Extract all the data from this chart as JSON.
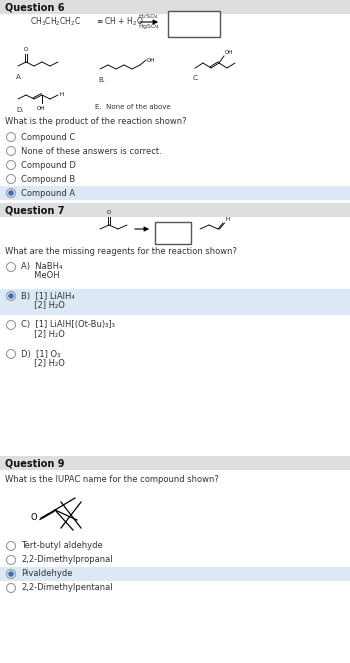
{
  "bg_color": "#ffffff",
  "section_header_color": "#dedede",
  "selected_highlight_color": "#dce8f5",
  "text_color": "#333333",
  "q6_title": "Question 6",
  "q6_question": "What is the product of the reaction shown?",
  "q6_options": [
    {
      "text": "Compound C",
      "selected": false
    },
    {
      "text": "None of these answers is correct.",
      "selected": false
    },
    {
      "text": "Compound D",
      "selected": false
    },
    {
      "text": "Compound B",
      "selected": false
    },
    {
      "text": "Compound A",
      "selected": true
    }
  ],
  "q7_title": "Question 7",
  "q7_question": "What are the missing reagents for the reaction shown?",
  "q7_options": [
    {
      "lines": [
        "A)  NaBH₄",
        "     MeOH"
      ],
      "selected": false
    },
    {
      "lines": [
        "B)  [1] LiAlH₄",
        "     [2] H₂O"
      ],
      "selected": true
    },
    {
      "lines": [
        "C)  [1] LiAlH[(Ot-Bu)₃]₃",
        "     [2] H₂O"
      ],
      "selected": false
    },
    {
      "lines": [
        "D)  [1] O₃",
        "     [2] H₂O"
      ],
      "selected": false
    }
  ],
  "q9_title": "Question 9",
  "q9_question": "What is the IUPAC name for the compound shown?",
  "q9_options": [
    {
      "text": "Tert-butyl aldehyde",
      "selected": false
    },
    {
      "text": "2,2-Dimethylpropanal",
      "selected": false
    },
    {
      "text": "Pivaldehyde",
      "selected": true
    },
    {
      "text": "2,2-Dimethylpentanal",
      "selected": false
    }
  ]
}
